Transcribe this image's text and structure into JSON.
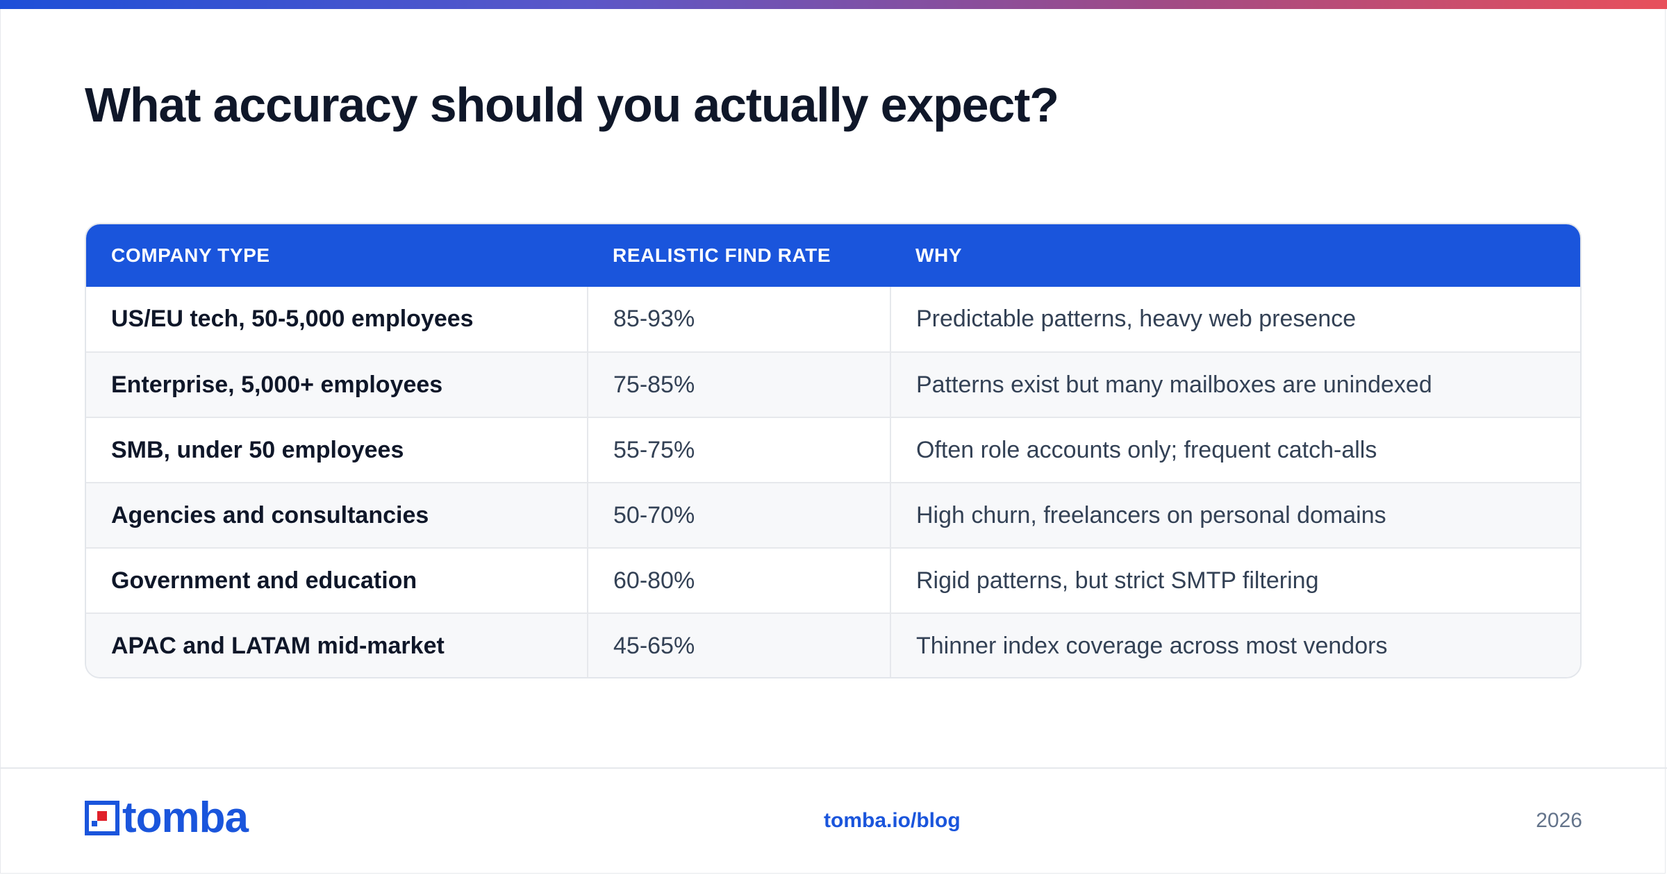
{
  "page": {
    "title": "What accuracy should you actually expect?"
  },
  "table": {
    "headers": [
      "COMPANY TYPE",
      "REALISTIC FIND RATE",
      "WHY"
    ],
    "rows": [
      [
        "US/EU tech, 50-5,000 employees",
        "85-93%",
        "Predictable patterns, heavy web presence"
      ],
      [
        "Enterprise, 5,000+ employees",
        "75-85%",
        "Patterns exist but many mailboxes are unindexed"
      ],
      [
        "SMB, under 50 employees",
        "55-75%",
        "Often role accounts only; frequent catch-alls"
      ],
      [
        "Agencies and consultancies",
        "50-70%",
        "High churn, freelancers on personal domains"
      ],
      [
        "Government and education",
        "60-80%",
        "Rigid patterns, but strict SMTP filtering"
      ],
      [
        "APAC and LATAM mid-market",
        "45-65%",
        "Thinner index coverage across most vendors"
      ]
    ]
  },
  "footer": {
    "logo_text": "tomba",
    "link": "tomba.io/blog",
    "year": "2026"
  },
  "colors": {
    "accent": "#1a55dc",
    "logo_red": "#e0202a",
    "heading": "#0f1729",
    "gradient_start": "#1d4fd8",
    "gradient_end": "#e8505b"
  },
  "icons": {
    "logo_mark": "tomba-logo-mark"
  }
}
